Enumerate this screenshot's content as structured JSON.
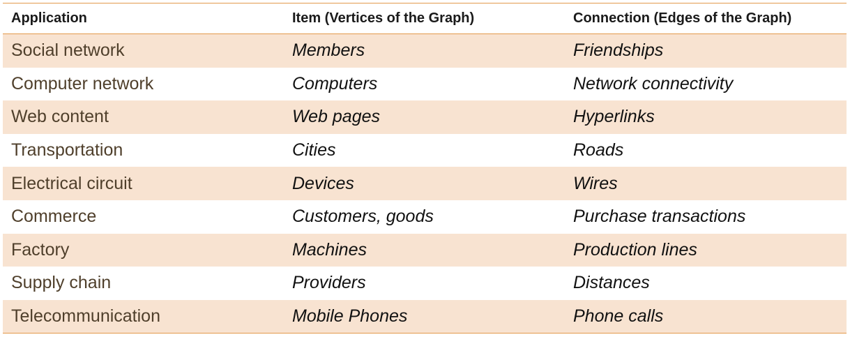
{
  "table": {
    "headers": {
      "application": "Application",
      "item": "Item (Vertices of the Graph)",
      "connection": "Connection (Edges of the Graph)"
    },
    "rows": [
      {
        "application": "Social network",
        "item": "Members",
        "connection": "Friendships"
      },
      {
        "application": "Computer network",
        "item": "Computers",
        "connection": "Network connectivity"
      },
      {
        "application": "Web content",
        "item": "Web pages",
        "connection": "Hyperlinks"
      },
      {
        "application": "Transportation",
        "item": "Cities",
        "connection": "Roads"
      },
      {
        "application": "Electrical circuit",
        "item": "Devices",
        "connection": "Wires"
      },
      {
        "application": "Commerce",
        "item": "Customers, goods",
        "connection": "Purchase transactions"
      },
      {
        "application": "Factory",
        "item": "Machines",
        "connection": "Production lines"
      },
      {
        "application": "Supply chain",
        "item": "Providers",
        "connection": "Distances"
      },
      {
        "application": "Telecommunication",
        "item": "Mobile Phones",
        "connection": "Phone calls"
      }
    ]
  },
  "colors": {
    "rule": "#e39a4b",
    "band": "#f8e3d1",
    "application_text": "#4f3f2b"
  }
}
